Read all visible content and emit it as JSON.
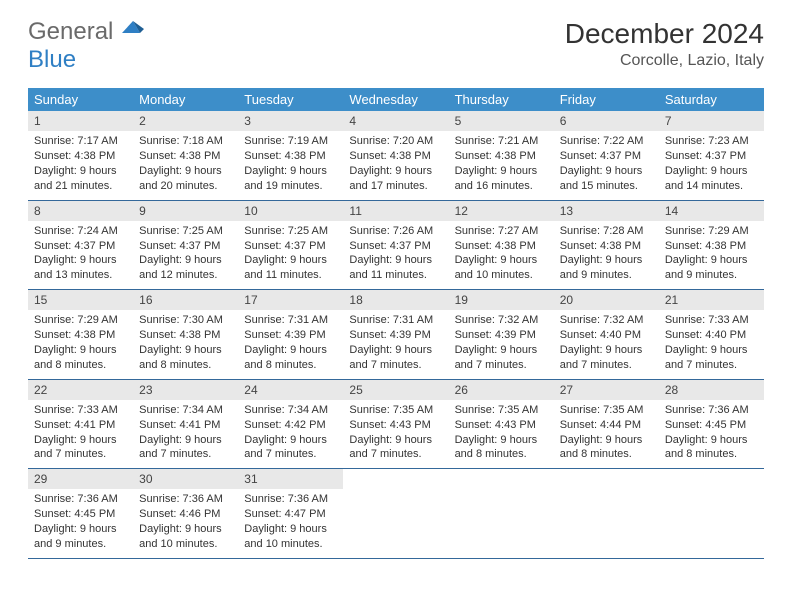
{
  "logo": {
    "text1": "General",
    "text2": "Blue"
  },
  "title": "December 2024",
  "location": "Corcolle, Lazio, Italy",
  "colors": {
    "header_bg": "#3d8ec9",
    "header_text": "#ffffff",
    "daynum_bg": "#e8e8e8",
    "row_border": "#34689a",
    "logo_gray": "#6a6a6a",
    "logo_blue": "#2f7fc4"
  },
  "weekdays": [
    "Sunday",
    "Monday",
    "Tuesday",
    "Wednesday",
    "Thursday",
    "Friday",
    "Saturday"
  ],
  "days": [
    {
      "n": "1",
      "sr": "7:17 AM",
      "ss": "4:38 PM",
      "dl": "9 hours and 21 minutes."
    },
    {
      "n": "2",
      "sr": "7:18 AM",
      "ss": "4:38 PM",
      "dl": "9 hours and 20 minutes."
    },
    {
      "n": "3",
      "sr": "7:19 AM",
      "ss": "4:38 PM",
      "dl": "9 hours and 19 minutes."
    },
    {
      "n": "4",
      "sr": "7:20 AM",
      "ss": "4:38 PM",
      "dl": "9 hours and 17 minutes."
    },
    {
      "n": "5",
      "sr": "7:21 AM",
      "ss": "4:38 PM",
      "dl": "9 hours and 16 minutes."
    },
    {
      "n": "6",
      "sr": "7:22 AM",
      "ss": "4:37 PM",
      "dl": "9 hours and 15 minutes."
    },
    {
      "n": "7",
      "sr": "7:23 AM",
      "ss": "4:37 PM",
      "dl": "9 hours and 14 minutes."
    },
    {
      "n": "8",
      "sr": "7:24 AM",
      "ss": "4:37 PM",
      "dl": "9 hours and 13 minutes."
    },
    {
      "n": "9",
      "sr": "7:25 AM",
      "ss": "4:37 PM",
      "dl": "9 hours and 12 minutes."
    },
    {
      "n": "10",
      "sr": "7:25 AM",
      "ss": "4:37 PM",
      "dl": "9 hours and 11 minutes."
    },
    {
      "n": "11",
      "sr": "7:26 AM",
      "ss": "4:37 PM",
      "dl": "9 hours and 11 minutes."
    },
    {
      "n": "12",
      "sr": "7:27 AM",
      "ss": "4:38 PM",
      "dl": "9 hours and 10 minutes."
    },
    {
      "n": "13",
      "sr": "7:28 AM",
      "ss": "4:38 PM",
      "dl": "9 hours and 9 minutes."
    },
    {
      "n": "14",
      "sr": "7:29 AM",
      "ss": "4:38 PM",
      "dl": "9 hours and 9 minutes."
    },
    {
      "n": "15",
      "sr": "7:29 AM",
      "ss": "4:38 PM",
      "dl": "9 hours and 8 minutes."
    },
    {
      "n": "16",
      "sr": "7:30 AM",
      "ss": "4:38 PM",
      "dl": "9 hours and 8 minutes."
    },
    {
      "n": "17",
      "sr": "7:31 AM",
      "ss": "4:39 PM",
      "dl": "9 hours and 8 minutes."
    },
    {
      "n": "18",
      "sr": "7:31 AM",
      "ss": "4:39 PM",
      "dl": "9 hours and 7 minutes."
    },
    {
      "n": "19",
      "sr": "7:32 AM",
      "ss": "4:39 PM",
      "dl": "9 hours and 7 minutes."
    },
    {
      "n": "20",
      "sr": "7:32 AM",
      "ss": "4:40 PM",
      "dl": "9 hours and 7 minutes."
    },
    {
      "n": "21",
      "sr": "7:33 AM",
      "ss": "4:40 PM",
      "dl": "9 hours and 7 minutes."
    },
    {
      "n": "22",
      "sr": "7:33 AM",
      "ss": "4:41 PM",
      "dl": "9 hours and 7 minutes."
    },
    {
      "n": "23",
      "sr": "7:34 AM",
      "ss": "4:41 PM",
      "dl": "9 hours and 7 minutes."
    },
    {
      "n": "24",
      "sr": "7:34 AM",
      "ss": "4:42 PM",
      "dl": "9 hours and 7 minutes."
    },
    {
      "n": "25",
      "sr": "7:35 AM",
      "ss": "4:43 PM",
      "dl": "9 hours and 7 minutes."
    },
    {
      "n": "26",
      "sr": "7:35 AM",
      "ss": "4:43 PM",
      "dl": "9 hours and 8 minutes."
    },
    {
      "n": "27",
      "sr": "7:35 AM",
      "ss": "4:44 PM",
      "dl": "9 hours and 8 minutes."
    },
    {
      "n": "28",
      "sr": "7:36 AM",
      "ss": "4:45 PM",
      "dl": "9 hours and 8 minutes."
    },
    {
      "n": "29",
      "sr": "7:36 AM",
      "ss": "4:45 PM",
      "dl": "9 hours and 9 minutes."
    },
    {
      "n": "30",
      "sr": "7:36 AM",
      "ss": "4:46 PM",
      "dl": "9 hours and 10 minutes."
    },
    {
      "n": "31",
      "sr": "7:36 AM",
      "ss": "4:47 PM",
      "dl": "9 hours and 10 minutes."
    }
  ],
  "labels": {
    "sunrise": "Sunrise:",
    "sunset": "Sunset:",
    "daylight": "Daylight:"
  },
  "layout": {
    "cols": 7,
    "rows": 5,
    "start_offset": 0
  }
}
